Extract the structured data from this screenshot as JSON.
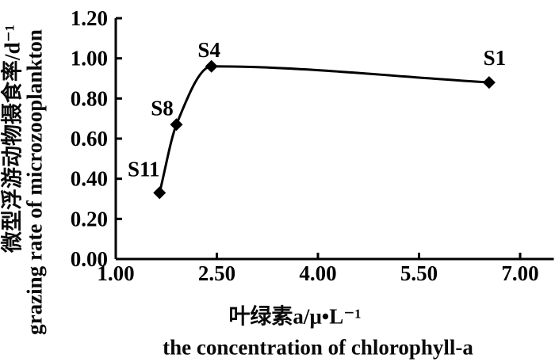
{
  "chart_data": {
    "type": "line",
    "title": "",
    "x_title_zh": "叶绿素a/μ•L⁻¹",
    "x_title_en": "the concentration of chlorophyll-a",
    "y_title_zh": "微型浮游动物摄食率/d⁻¹",
    "y_title_en": "grazing rate of microzooplankton",
    "xlim": [
      1.0,
      7.5
    ],
    "ylim": [
      0.0,
      1.2
    ],
    "x_ticks": [
      1.0,
      2.5,
      4.0,
      5.5,
      7.0
    ],
    "x_tick_labels": [
      "1.00",
      "2.50",
      "4.00",
      "5.50",
      "7.00"
    ],
    "y_ticks": [
      0.0,
      0.2,
      0.4,
      0.6,
      0.8,
      1.0,
      1.2
    ],
    "y_tick_labels": [
      "0.00",
      "0.20",
      "0.40",
      "0.60",
      "0.80",
      "1.00",
      "1.20"
    ],
    "grid": false,
    "legend": "none",
    "curve": "smooth",
    "marker": "diamond",
    "ink_color": "#000000",
    "background": "#ffffff",
    "points": [
      {
        "label": "S11",
        "x": 1.65,
        "y": 0.33,
        "label_offset": [
          -20,
          -30
        ]
      },
      {
        "label": "S8",
        "x": 1.9,
        "y": 0.67,
        "label_offset": [
          -18,
          -21
        ]
      },
      {
        "label": "S4",
        "x": 2.42,
        "y": 0.96,
        "label_offset": [
          -3,
          -21
        ]
      },
      {
        "label": "S1",
        "x": 6.54,
        "y": 0.88,
        "label_offset": [
          7,
          -31
        ]
      }
    ]
  }
}
